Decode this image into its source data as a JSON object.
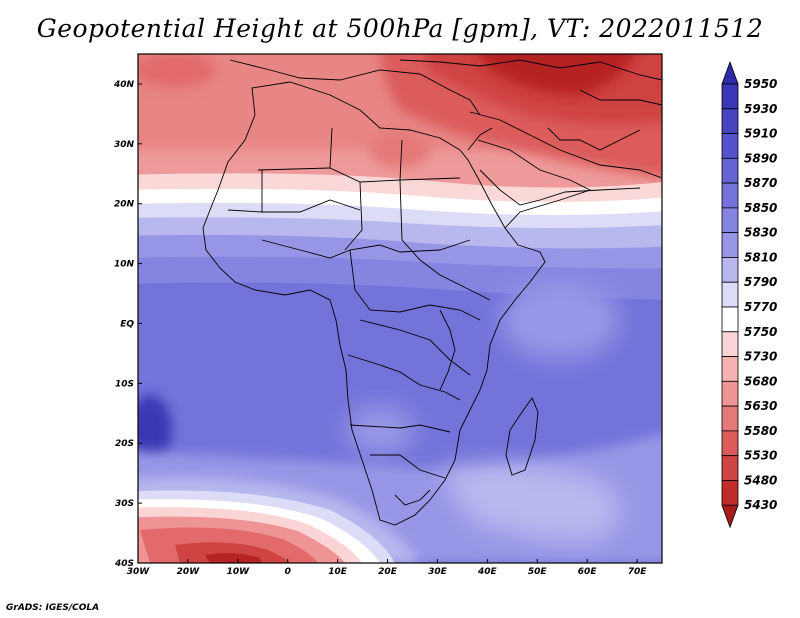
{
  "title": "Geopotential Height at 500hPa [gpm], VT: 2022011512",
  "footer": "GrADS: IGES/COLA",
  "map": {
    "lon_range": [
      -30,
      75
    ],
    "lat_range": [
      -40,
      45
    ],
    "lon_ticks": [
      {
        "value": -30,
        "label": "30W"
      },
      {
        "value": -20,
        "label": "20W"
      },
      {
        "value": -10,
        "label": "10W"
      },
      {
        "value": 0,
        "label": "0"
      },
      {
        "value": 10,
        "label": "10E"
      },
      {
        "value": 20,
        "label": "20E"
      },
      {
        "value": 30,
        "label": "30E"
      },
      {
        "value": 40,
        "label": "40E"
      },
      {
        "value": 50,
        "label": "50E"
      },
      {
        "value": 60,
        "label": "60E"
      },
      {
        "value": 70,
        "label": "70E"
      }
    ],
    "lat_ticks": [
      {
        "value": 40,
        "label": "40N"
      },
      {
        "value": 30,
        "label": "30N"
      },
      {
        "value": 20,
        "label": "20N"
      },
      {
        "value": 10,
        "label": "10N"
      },
      {
        "value": 0,
        "label": "EQ"
      },
      {
        "value": -10,
        "label": "10S"
      },
      {
        "value": -20,
        "label": "20S"
      },
      {
        "value": -30,
        "label": "30S"
      },
      {
        "value": -40,
        "label": "40S"
      }
    ]
  },
  "colorbar": {
    "levels": [
      "5950",
      "5930",
      "5910",
      "5890",
      "5870",
      "5850",
      "5830",
      "5810",
      "5790",
      "5770",
      "5750",
      "5730",
      "5680",
      "5630",
      "5580",
      "5530",
      "5480",
      "5430"
    ],
    "colors": [
      "#2e2aa8",
      "#3a37b6",
      "#4744c2",
      "#5553cc",
      "#6664d4",
      "#7573db",
      "#8584e1",
      "#9796e6",
      "#b8b8ef",
      "#dcdcf7",
      "#ffffff",
      "#fbd5d5",
      "#f5b2b2",
      "#ee9494",
      "#e57878",
      "#dc5c5c",
      "#cf4343",
      "#c02c2c",
      "#a81b1b"
    ]
  }
}
